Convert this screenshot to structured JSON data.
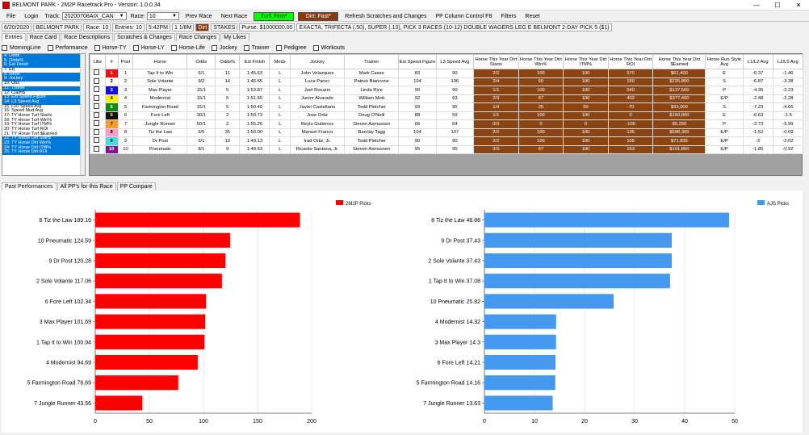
{
  "window": {
    "title": "BELMONT PARK - 2M2P Racetrack Pro - Version: 1.0.0.34",
    "min": "—",
    "max": "☐",
    "close": "✕"
  },
  "menu": {
    "file": "File",
    "login": "Login",
    "track_label": "Track:",
    "track_value": "20200708AIX_CAN",
    "race_label": "Race:",
    "race_value": "10",
    "prev": "Prev Race",
    "next": "Next Race",
    "turf": "Turf: Firm*",
    "dirt": "Dirt: Fast*",
    "refresh": "Refresh Scratches and Changes",
    "ppcol": "PP Column Control F8",
    "filters": "Filters",
    "reset": "Reset"
  },
  "info": {
    "date": "6/20/2020",
    "track": "BELMONT PARK",
    "race": "Race: 10",
    "entries": "Entries: 10",
    "time": "5:42PM",
    "dist": "1 1/8M",
    "surface": "Dirt",
    "type": "STAKES",
    "purse": "Purse: $1000000.00",
    "wagers": "EXACTA, TRIFECTA (.50), SUPER (.10), PICK 3 RACES (10-12) DOUBLE WAGERS LEG E BELMONT 2-DAY PICK 5 ($1)"
  },
  "tabs": [
    "Entries",
    "Race Card",
    "Race Descriptions",
    "Scratches & Changes",
    "Race Changes",
    "My Likes"
  ],
  "checks": [
    "MorningLine",
    "Performance",
    "Horse-TY",
    "Horse-LY",
    "Horse-Life",
    "Jockey",
    "Trainer",
    "Pedigree",
    "Workouts"
  ],
  "list": [
    {
      "t": "4: Odds",
      "s": true
    },
    {
      "t": "5: Odds%",
      "s": true
    },
    {
      "t": "6: Est Finish",
      "s": true
    },
    {
      "t": "7: Eq",
      "s": false
    },
    {
      "t": "8: Meds",
      "s": true
    },
    {
      "t": "9: Jockey",
      "s": true
    },
    {
      "t": "10: Ubs",
      "s": false
    },
    {
      "t": "11: Trainer",
      "s": true
    },
    {
      "t": "12: Claim$",
      "s": false
    },
    {
      "t": "13: Est Speed Figure",
      "s": true
    },
    {
      "t": "14: L3 Speed Avg",
      "s": true
    },
    {
      "t": "15: L10 Speed Avg",
      "s": false
    },
    {
      "t": "16: Speed Mud Avg",
      "s": false
    },
    {
      "t": "17: TY Horse Turf Starts",
      "s": false
    },
    {
      "t": "18: TY Horse Turf Win%",
      "s": false
    },
    {
      "t": "19: TY Horse Turf ITM%",
      "s": false
    },
    {
      "t": "20: TY Horse Turf ROI",
      "s": false
    },
    {
      "t": "21: TY Horse Turf $Earned",
      "s": false
    },
    {
      "t": "22: TY Horse Dirt Starts",
      "s": true
    },
    {
      "t": "23: TY Horse Dirt Win%",
      "s": true
    },
    {
      "t": "24: TY Horse Dirt ITM%",
      "s": true
    },
    {
      "t": "25: TY Horse Dirt ROI",
      "s": true
    }
  ],
  "columns": [
    "Like",
    "#",
    "Post",
    "Horse",
    "Odds",
    "Odds%",
    "Est Finish",
    "Meds",
    "Jockey",
    "Trainer",
    "Est Speed Figure",
    "L3 Speed Avg",
    "Horse This Year Dirt Starts",
    "Horse This Year Dirt Win%",
    "Horse This Year Dirt ITM%",
    "Horse This Year Dirt ROI",
    "Horse This Year Dirt $Earned",
    "Horse Run Style Avg",
    "L1/L2 Avg",
    "L2/L5 Avg"
  ],
  "rows": [
    {
      "num": "1",
      "color": "#ee1111",
      "fg": "#fff",
      "post": "1",
      "horse": "Tap It to Win",
      "odds": "6/1",
      "pct": "11",
      "fin": "1:45.63",
      "meds": "L",
      "jockey": "John Velazquez",
      "trainer": "Mark Casse",
      "esf": "83",
      "l3": "90",
      "starts": "2/2",
      "win": "100",
      "itm": "100",
      "roi": "570",
      "earn": "$61,400",
      "style": "E",
      "l12": "-0.37",
      "l25": "-1.46"
    },
    {
      "num": "2",
      "color": "#ffffff",
      "fg": "#000",
      "post": "2",
      "horse": "Sole Volante",
      "odds": "9/2",
      "pct": "14",
      "fin": "1:46.65",
      "meds": "L",
      "jockey": "Luca Panici",
      "trainer": "Patrick Biancone",
      "esf": "104",
      "l3": "106",
      "starts": "2/4",
      "win": "50",
      "itm": "100",
      "roi": "150",
      "earn": "$226,800",
      "style": "S",
      "l12": "-6.87",
      "l25": "-3.38"
    },
    {
      "num": "3",
      "color": "#1111ee",
      "fg": "#fff",
      "post": "3",
      "horse": "Max Player",
      "odds": "15/1",
      "pct": "5",
      "fin": "1:53.87",
      "meds": "L",
      "jockey": "Joel Rosario",
      "trainer": "Linda Rice",
      "esf": "90",
      "l3": "90",
      "starts": "1/1",
      "win": "100",
      "itm": "100",
      "roi": "540",
      "earn": "$137,500",
      "style": "P",
      "l12": "-4.35",
      "l25": "-2.23"
    },
    {
      "num": "4",
      "color": "#ffee00",
      "fg": "#000",
      "post": "4",
      "horse": "Modernist",
      "odds": "15/1",
      "pct": "5",
      "fin": "1:51.65",
      "meds": "L",
      "jockey": "Junior Alvarado",
      "trainer": "William Mott",
      "esf": "92",
      "l3": "93",
      "starts": "2/3",
      "win": "67",
      "itm": "100",
      "roi": "402",
      "earn": "$377,400",
      "style": "E/P",
      "l12": "-2.48",
      "l25": "-2.28"
    },
    {
      "num": "5",
      "color": "#118811",
      "fg": "#fff",
      "post": "5",
      "horse": "Farmington Road",
      "odds": "15/1",
      "pct": "5",
      "fin": "1:50.40",
      "meds": "L",
      "jockey": "Javier Castellano",
      "trainer": "Todd Pletcher",
      "esf": "93",
      "l3": "95",
      "starts": "1/4",
      "win": "25",
      "itm": "50",
      "roi": "-70",
      "earn": "$93,000",
      "style": "S",
      "l12": "-7.23",
      "l25": "-4.66"
    },
    {
      "num": "6",
      "color": "#111111",
      "fg": "#ff0",
      "post": "6",
      "horse": "Fore Left",
      "odds": "30/1",
      "pct": "2",
      "fin": "1:50.73",
      "meds": "L",
      "jockey": "Jose Ortiz",
      "trainer": "Doug O'Neill",
      "esf": "88",
      "l3": "59",
      "starts": "1/1",
      "win": "100",
      "itm": "100",
      "roi": "0",
      "earn": "$150,000",
      "style": "E",
      "l12": "-0.63",
      "l25": "-1.5"
    },
    {
      "num": "7",
      "color": "#ff9922",
      "fg": "#000",
      "post": "7",
      "horse": "Jungle Runner",
      "odds": "50/1",
      "pct": "2",
      "fin": "1:55.26",
      "meds": "L",
      "jockey": "Reylu Gutierrez",
      "trainer": "Steven Asmussen",
      "esf": "66",
      "l3": "64",
      "starts": "0/3",
      "win": "0",
      "itm": "0",
      "roi": "-100",
      "earn": "$5,250",
      "style": "P",
      "l12": "-3.73",
      "l25": "-5.99"
    },
    {
      "num": "8",
      "color": "#ff99cc",
      "fg": "#000",
      "post": "8",
      "horse": "Tiz the Law",
      "odds": "6/5",
      "pct": "35",
      "fin": "1:50.00",
      "meds": "L",
      "jockey": "Manuel Franco",
      "trainer": "Barclay Tagg",
      "esf": "104",
      "l3": "107",
      "starts": "2/2",
      "win": "100",
      "itm": "100",
      "roi": "135",
      "earn": "$598,300",
      "style": "E/P",
      "l12": "-1.52",
      "l25": "-0.09"
    },
    {
      "num": "9",
      "color": "#44dddd",
      "fg": "#000",
      "post": "9",
      "horse": "Dr Post",
      "odds": "5/1",
      "pct": "13",
      "fin": "1:49.13",
      "meds": "L",
      "jockey": "Irad Ortiz, Jr.",
      "trainer": "Todd Pletcher",
      "esf": "90",
      "l3": "90",
      "starts": "2/2",
      "win": "100",
      "itm": "100",
      "roi": "105",
      "earn": "$71,835",
      "style": "E/P",
      "l12": "-2",
      "l25": "-2.02"
    },
    {
      "num": "10",
      "color": "#881199",
      "fg": "#fff",
      "post": "10",
      "horse": "Pneumatic",
      "odds": "8/1",
      "pct": "9",
      "fin": "1:49.63",
      "meds": "L",
      "jockey": "Ricardo Santana, Jr.",
      "trainer": "Steven Asmussen",
      "esf": "95",
      "l3": "95",
      "starts": "2/3",
      "win": "67",
      "itm": "100",
      "roi": "153",
      "earn": "$101,850",
      "style": "E/P",
      "l12": "-1.85",
      "l25": "-0.92"
    }
  ],
  "bottom_tabs": [
    "Past Performances",
    "All PP's for this Race",
    "PP Compare"
  ],
  "chart_data": [
    {
      "type": "bar",
      "orientation": "horizontal",
      "series_name": "2M2P Picks",
      "color": "#ff0000",
      "categories": [
        "8 Tiz the Law 189.16",
        "10 Pneumatic 124.59",
        "9 Dr Post 120.28",
        "2 Sole Volante 117.06",
        "6 Fore Left 102.34",
        "3 Max Player 101.69",
        "1 Tap It to Win 100.94",
        "4 Modernist 94.69",
        "5 Farmington Road 76.69",
        "7 Jungle Runner 43.56"
      ],
      "values": [
        189.16,
        124.59,
        120.28,
        117.06,
        102.34,
        101.69,
        100.94,
        94.69,
        76.69,
        43.56
      ],
      "xlim": [
        0,
        200
      ],
      "ticks": [
        "0",
        "50",
        "100",
        "150",
        "200"
      ],
      "tick_values": [
        0,
        50,
        100,
        150,
        200
      ]
    },
    {
      "type": "bar",
      "orientation": "horizontal",
      "series_name": "AJS Picks",
      "color": "#4499ee",
      "categories": [
        "8 Tiz the Law 48.88",
        "9 Dr Post 37.43",
        "2 Sole Volante 37.43",
        "1 Tap It to Win 37.08",
        "10 Pneumatic 25.82",
        "4 Modernist 14.32",
        "3 Max Player 14.3",
        "6 Fore Left 14.21",
        "5 Farmington Road 14.16",
        "7 Jungle Runner 13.63"
      ],
      "values": [
        48.88,
        37.43,
        37.43,
        37.08,
        25.82,
        14.32,
        14.3,
        14.21,
        14.16,
        13.63
      ],
      "xlim": [
        0,
        50
      ],
      "ticks": [
        "0",
        "10",
        "20",
        "30",
        "40",
        "50"
      ],
      "tick_values": [
        0,
        10,
        20,
        30,
        40,
        50
      ]
    }
  ]
}
